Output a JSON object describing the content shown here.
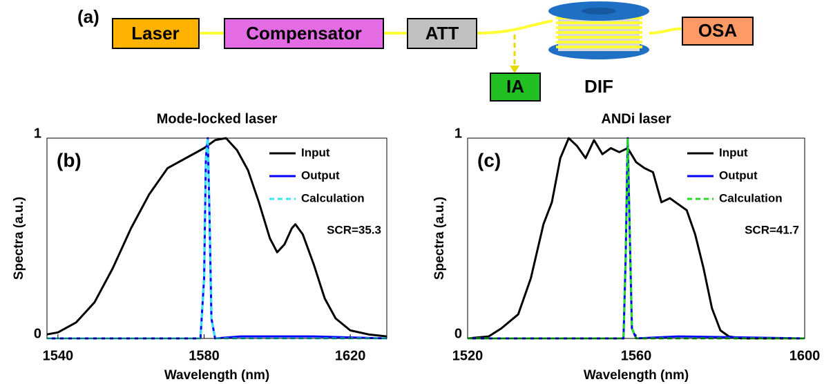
{
  "diagram": {
    "label": "(a)",
    "nodes": [
      {
        "label": "Laser"
      },
      {
        "label": "Compensator"
      },
      {
        "label": "ATT"
      },
      {
        "label": "IA"
      },
      {
        "label": "DIF"
      },
      {
        "label": "OSA"
      }
    ]
  },
  "chart_data": [
    {
      "type": "line",
      "title": "Mode-locked laser",
      "panel_label": "(b)",
      "annotation": "SCR=35.3",
      "xlabel": "Wavelength (nm)",
      "ylabel": "Spectra (a.u.)",
      "xlim": [
        1537,
        1630
      ],
      "xticks": [
        1540,
        1580,
        1620
      ],
      "ylim": [
        0,
        1
      ],
      "yticks": [
        0,
        1
      ],
      "legend": "upper right",
      "series": [
        {
          "name": "Input",
          "color": "#000000",
          "style": "solid",
          "x": [
            1537,
            1540,
            1545,
            1550,
            1555,
            1560,
            1565,
            1570,
            1575,
            1580,
            1583,
            1586,
            1589,
            1592,
            1595,
            1598,
            1600,
            1602,
            1604,
            1605,
            1607,
            1610,
            1613,
            1616,
            1620,
            1625,
            1630
          ],
          "values": [
            0.02,
            0.03,
            0.08,
            0.18,
            0.35,
            0.55,
            0.72,
            0.85,
            0.9,
            0.95,
            0.99,
            1.0,
            0.94,
            0.84,
            0.68,
            0.5,
            0.43,
            0.47,
            0.55,
            0.57,
            0.52,
            0.37,
            0.2,
            0.1,
            0.04,
            0.02,
            0.01
          ]
        },
        {
          "name": "Output",
          "color": "#0000ff",
          "style": "solid",
          "x": [
            1537,
            1579,
            1580,
            1580.5,
            1581,
            1581.5,
            1582,
            1583,
            1590,
            1600,
            1610,
            1630
          ],
          "values": [
            0,
            0,
            0.3,
            0.9,
            1,
            0.6,
            0.1,
            0,
            0.01,
            0.01,
            0.01,
            0
          ]
        },
        {
          "name": "Calculation",
          "color": "#33e6f0",
          "style": "dashed",
          "x": [
            1537,
            1579,
            1580,
            1580.5,
            1581,
            1581.5,
            1582,
            1583,
            1630
          ],
          "values": [
            0,
            0,
            0.3,
            0.9,
            1,
            0.6,
            0.1,
            0,
            0
          ]
        }
      ]
    },
    {
      "type": "line",
      "title": "ANDi laser",
      "panel_label": "(c)",
      "annotation": "SCR=41.7",
      "xlabel": "Wavelength (nm)",
      "ylabel": "Spectra (a.u.)",
      "xlim": [
        1520,
        1600
      ],
      "xticks": [
        1520,
        1560,
        1600
      ],
      "ylim": [
        0,
        1
      ],
      "yticks": [
        0,
        1
      ],
      "legend": "upper right",
      "series": [
        {
          "name": "Input",
          "color": "#000000",
          "style": "solid",
          "x": [
            1520,
            1525,
            1528,
            1532,
            1535,
            1538,
            1540,
            1542,
            1544,
            1546,
            1548,
            1550,
            1552,
            1554,
            1556,
            1558,
            1560,
            1562,
            1564,
            1566,
            1568,
            1570,
            1572,
            1574,
            1576,
            1578,
            1580,
            1582,
            1585,
            1600
          ],
          "values": [
            0,
            0.01,
            0.05,
            0.12,
            0.3,
            0.57,
            0.68,
            0.9,
            1.0,
            0.96,
            0.9,
            0.99,
            0.92,
            0.95,
            0.93,
            0.95,
            0.88,
            0.85,
            0.83,
            0.68,
            0.7,
            0.67,
            0.64,
            0.52,
            0.35,
            0.15,
            0.04,
            0.01,
            0,
            0
          ]
        },
        {
          "name": "Output",
          "color": "#0000ff",
          "style": "solid",
          "x": [
            1520,
            1557,
            1557.5,
            1558,
            1558.5,
            1559,
            1560,
            1570,
            1600
          ],
          "values": [
            0,
            0,
            0.4,
            1,
            0.5,
            0.05,
            0,
            0.01,
            0
          ]
        },
        {
          "name": "Calculation",
          "color": "#22dd22",
          "style": "dashed",
          "x": [
            1520,
            1557,
            1557.5,
            1558,
            1558.5,
            1559,
            1560,
            1600
          ],
          "values": [
            0,
            0,
            0.4,
            1,
            0.5,
            0.05,
            0,
            0
          ]
        }
      ]
    }
  ]
}
